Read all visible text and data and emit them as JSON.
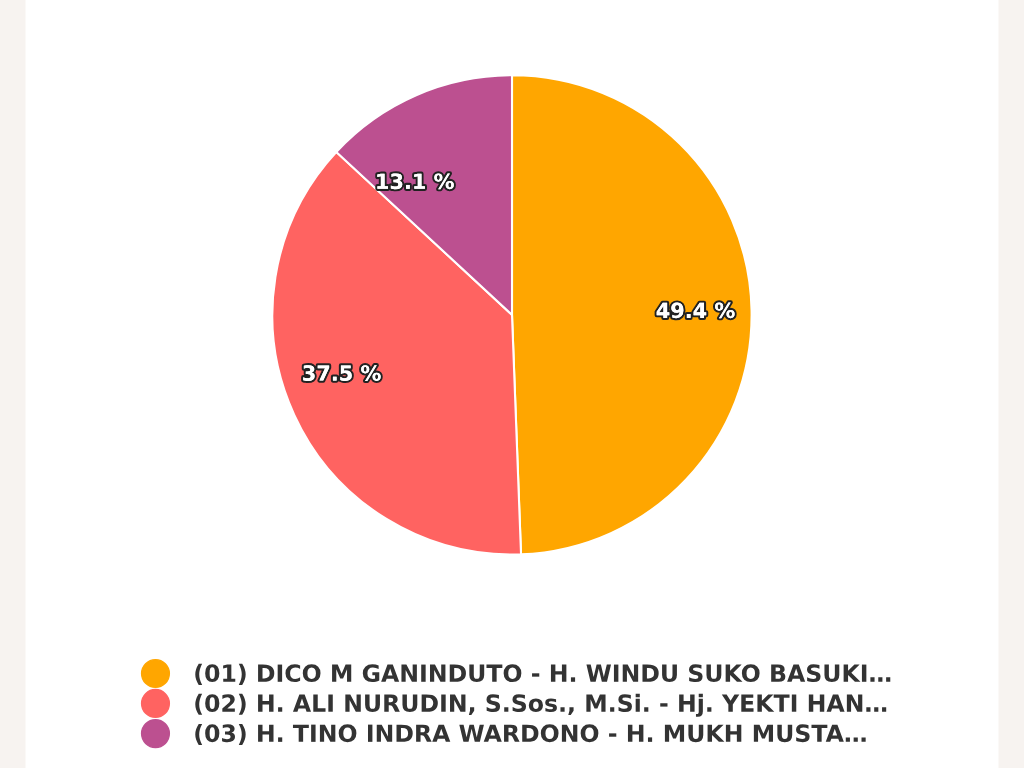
{
  "chart_data": {
    "type": "pie",
    "categories": [
      "(01) DICO M GANINDUTO - H. WINDU SUKO BASUKI…",
      "(02) H. ALI NURUDIN, S.Sos., M.Si. - Hj. YEKTI HAN…",
      "(03) H. TINO INDRA WARDONO - H. MUKH MUSTA…"
    ],
    "values": [
      49.4,
      37.5,
      13.1
    ],
    "colors": [
      "#ffa600",
      "#ff6361",
      "#bc5090"
    ],
    "value_labels": [
      "49.4 %",
      "37.5 %",
      "13.1 %"
    ],
    "legend": "bottom"
  }
}
